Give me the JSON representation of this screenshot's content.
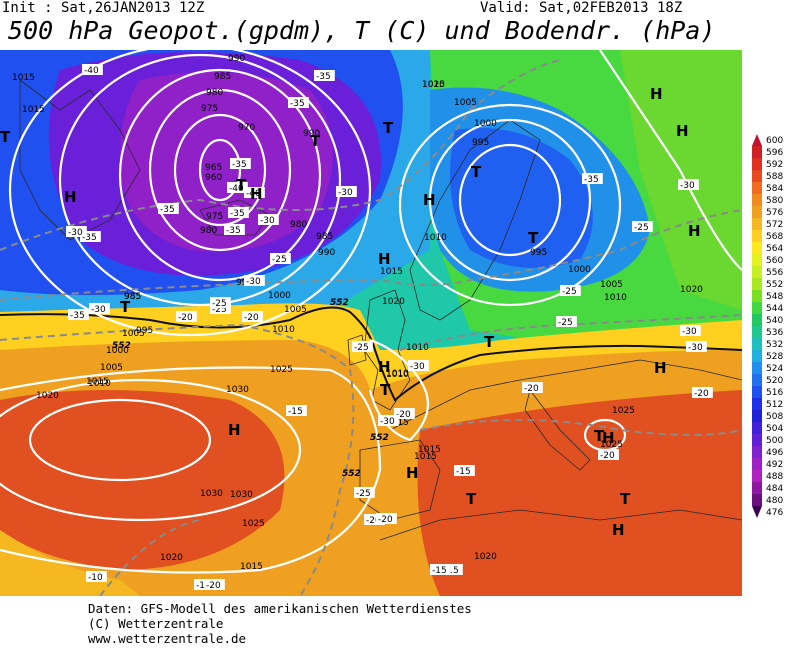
{
  "header": {
    "init": "Init : Sat,26JAN2013 12Z",
    "valid": "Valid: Sat,02FEB2013 18Z",
    "title": "500 hPa Geopot.(gpdm), T (C) und Bodendr. (hPa)"
  },
  "footer": {
    "line1": "Daten: GFS-Modell des amerikanischen Wetterdienstes",
    "line2": "(C) Wetterzentrale",
    "line3": "www.wetterzentrale.de"
  },
  "colorbar": {
    "labels": [
      "600",
      "596",
      "592",
      "588",
      "584",
      "580",
      "576",
      "572",
      "568",
      "564",
      "560",
      "556",
      "552",
      "548",
      "544",
      "540",
      "536",
      "532",
      "528",
      "524",
      "520",
      "516",
      "512",
      "508",
      "504",
      "500",
      "496",
      "492",
      "488",
      "484",
      "480",
      "476"
    ],
    "colors": [
      "#c01030",
      "#d02028",
      "#e03020",
      "#e84a20",
      "#f06a20",
      "#f08a20",
      "#f0a020",
      "#f5b820",
      "#ffd020",
      "#ffe820",
      "#e6f020",
      "#c8f020",
      "#a8e820",
      "#78e020",
      "#40d840",
      "#20c860",
      "#20c890",
      "#20c0c0",
      "#20b0e0",
      "#2090f0",
      "#2070f0",
      "#2050f0",
      "#2030e8",
      "#2020d8",
      "#4020d8",
      "#6020d8",
      "#8020d0",
      "#a020c8",
      "#b020c0",
      "#9018a0",
      "#6a1080",
      "#400050"
    ]
  },
  "map": {
    "pressure_labels": [
      "990",
      "1015",
      "1015",
      "1020",
      "1015",
      "985",
      "980",
      "975",
      "970",
      "965",
      "960",
      "975",
      "980",
      "980",
      "985",
      "990",
      "995",
      "1000",
      "1005",
      "1010",
      "1015",
      "1020",
      "1010",
      "1005",
      "1000",
      "995",
      "990",
      "985",
      "995",
      "1000",
      "1005",
      "1010",
      "1015",
      "1020",
      "1025",
      "1030",
      "1030",
      "1025",
      "1020",
      "1015",
      "1010",
      "1015",
      "1025",
      "1015",
      "1020",
      "1025",
      "1030",
      "1010",
      "1005",
      "1000",
      "995",
      "1020",
      "1005",
      "1010",
      "1015",
      "1010",
      "985"
    ],
    "temp_labels": [
      "-40",
      "-35",
      "-35",
      "-35",
      "-40",
      "-40",
      "-35",
      "-35",
      "-30",
      "-30",
      "-35",
      "-35",
      "-30",
      "-30",
      "-25",
      "-30",
      "-35",
      "-25",
      "-20",
      "-20",
      "-25",
      "-15",
      "-20",
      "-25",
      "-20",
      "-15",
      "-15",
      "-10",
      "-20",
      "-15",
      "-20",
      "-30",
      "-25",
      "-30",
      "-25",
      "-20",
      "-30",
      "-20",
      "-15",
      "-25",
      "-30",
      "-35",
      "-30",
      "-25",
      "-20",
      "-15"
    ],
    "pressure_centers": [
      "H",
      "T",
      "H",
      "T",
      "T",
      "H",
      "T",
      "H",
      "H",
      "H",
      "T",
      "H",
      "T",
      "T",
      "H",
      "H",
      "T",
      "H",
      "T",
      "T",
      "T",
      "H",
      "T",
      "H",
      "H"
    ],
    "front_labels": [
      "552",
      "552",
      "552",
      "552"
    ]
  }
}
